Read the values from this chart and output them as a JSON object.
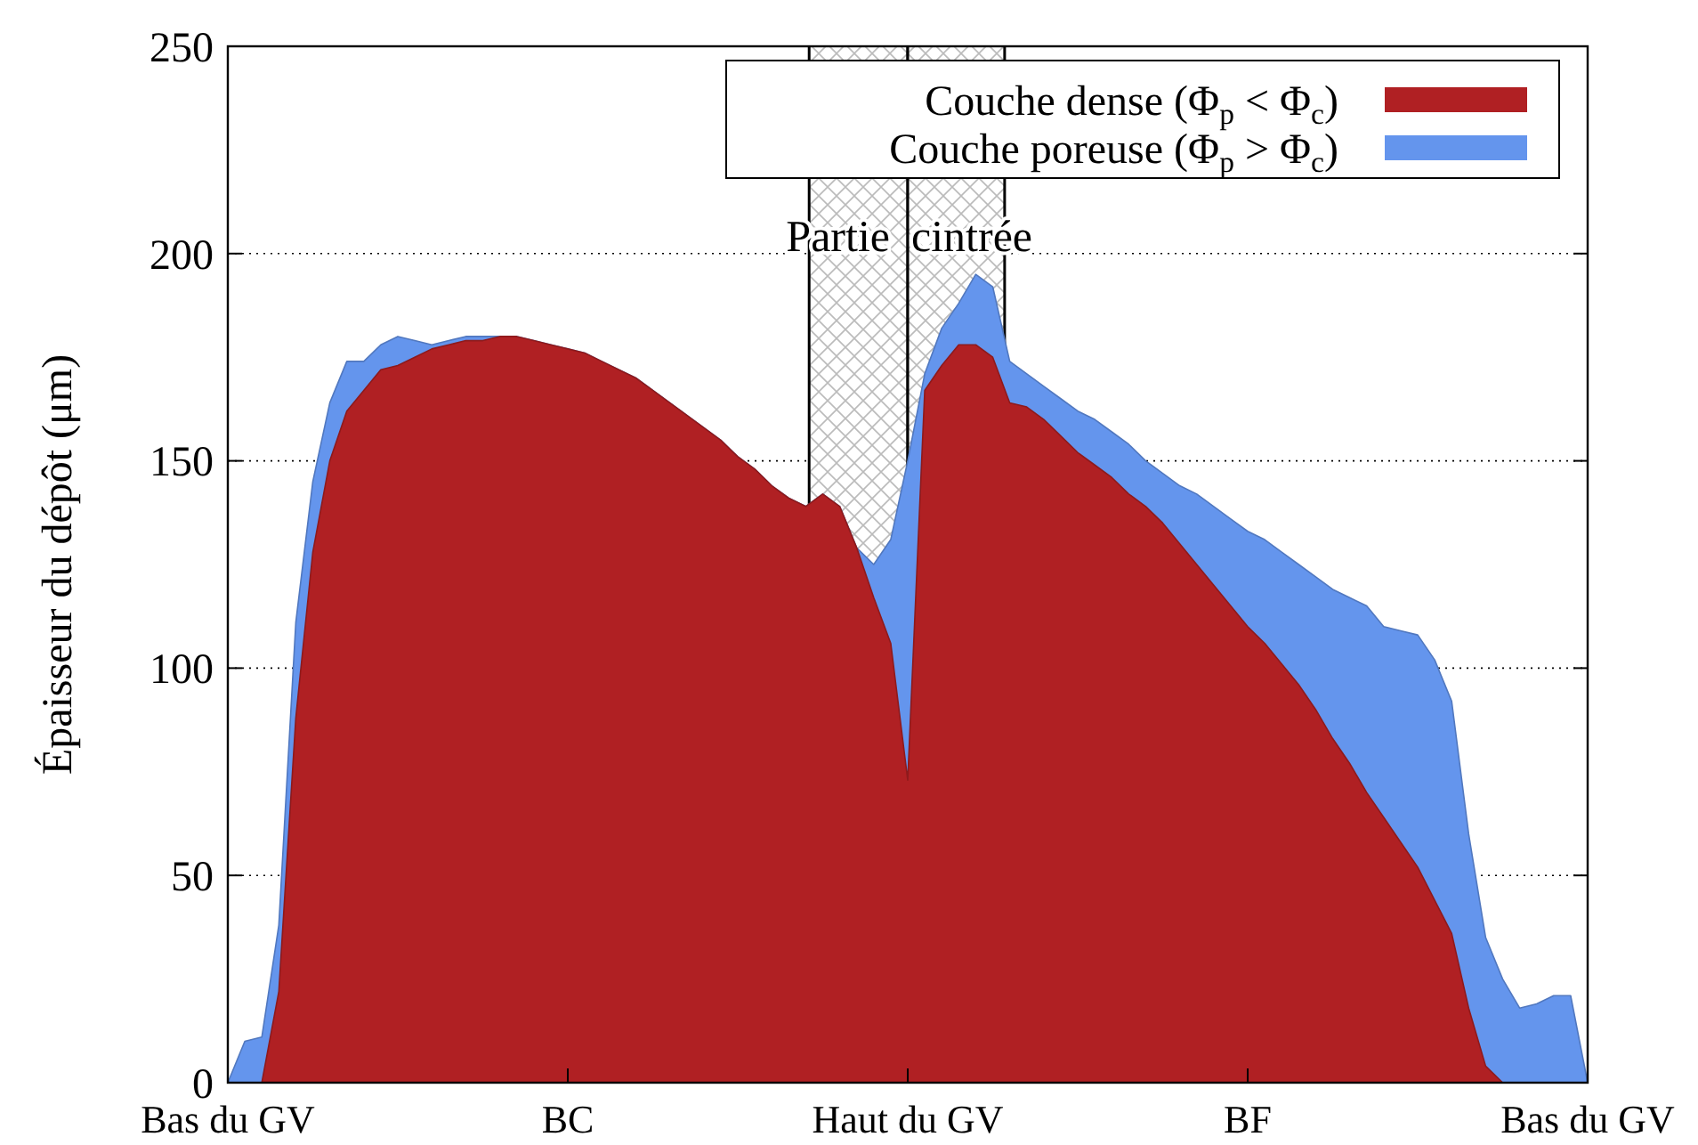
{
  "chart_data": {
    "type": "area",
    "ylabel": "Épaisseur du dépôt (μm)",
    "categories": [
      "Bas du GV",
      null,
      null,
      null,
      null,
      null,
      null,
      null,
      null,
      null,
      null,
      null,
      null,
      null,
      null,
      null,
      null,
      null,
      null,
      null,
      "BC",
      null,
      null,
      null,
      null,
      null,
      null,
      null,
      null,
      null,
      null,
      null,
      null,
      null,
      null,
      null,
      null,
      null,
      null,
      null,
      "Haut du GV",
      null,
      null,
      null,
      null,
      null,
      null,
      null,
      null,
      null,
      null,
      null,
      null,
      null,
      null,
      null,
      null,
      null,
      null,
      null,
      "BF",
      null,
      null,
      null,
      null,
      null,
      null,
      null,
      null,
      null,
      null,
      null,
      null,
      null,
      null,
      null,
      null,
      null,
      null,
      null,
      "Bas du GV"
    ],
    "ylim": [
      0,
      250
    ],
    "yticks": [
      0,
      50,
      100,
      150,
      200,
      250
    ],
    "grid": "y",
    "legend": "top right",
    "annotations": [
      "Partie",
      "cintrée"
    ],
    "series": [
      {
        "name": "Couche dense (Φ$_{p}$ < Φ$_{c}$)",
        "color": "#b02023",
        "values": [
          0,
          0,
          0,
          22,
          88,
          128,
          150,
          162,
          167,
          172,
          173,
          175,
          177,
          178,
          179,
          179,
          180,
          180,
          179,
          178,
          177,
          176,
          174,
          172,
          170,
          167,
          164,
          161,
          158,
          155,
          151,
          148,
          144,
          141,
          139,
          142,
          139,
          129,
          117,
          106,
          73,
          167,
          173,
          178,
          178,
          175,
          164,
          163,
          160,
          156,
          152,
          149,
          146,
          142,
          139,
          135,
          130,
          125,
          120,
          115,
          110,
          106,
          101,
          96,
          90,
          83,
          77,
          70,
          64,
          58,
          52,
          44,
          36,
          18,
          4,
          0,
          0,
          0,
          0,
          0,
          0
        ]
      },
      {
        "name": "Couche poreuse (Φ$_{p}$ > Φ$_{c}$)",
        "color": "#6495ed",
        "values": [
          0,
          10,
          11,
          38,
          111,
          145,
          164,
          174,
          174,
          178,
          180,
          179,
          178,
          179,
          180,
          180,
          180,
          180,
          179,
          178,
          177,
          176,
          174,
          172,
          170,
          167,
          164,
          161,
          158,
          155,
          151,
          148,
          144,
          141,
          139,
          142,
          139,
          129,
          125,
          131,
          150,
          171,
          182,
          188,
          195,
          192,
          174,
          171,
          168,
          165,
          162,
          160,
          157,
          154,
          150,
          147,
          144,
          142,
          139,
          136,
          133,
          131,
          128,
          125,
          122,
          119,
          117,
          115,
          110,
          109,
          108,
          102,
          92,
          60,
          35,
          25,
          18,
          19,
          21,
          21,
          0
        ]
      }
    ]
  }
}
